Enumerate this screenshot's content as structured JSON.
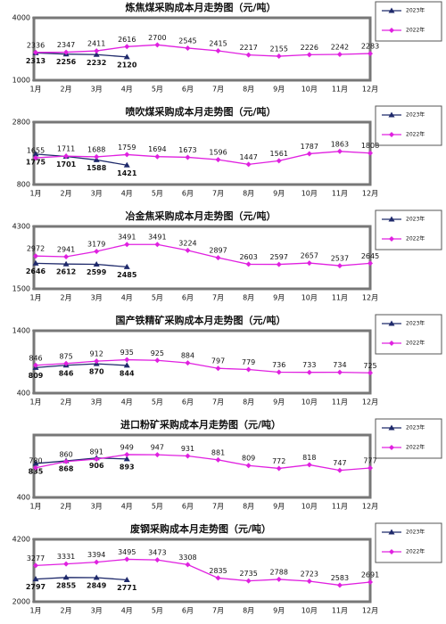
{
  "chart_data": [
    {
      "type": "line",
      "title": "炼焦煤采购成本月走势图（元/吨）",
      "categories": [
        "1月",
        "2月",
        "3月",
        "4月",
        "5月",
        "6月",
        "7月",
        "8月",
        "9月",
        "10月",
        "11月",
        "12月"
      ],
      "ylim": [
        1000,
        4000
      ],
      "yticks": [
        1000,
        4000
      ],
      "series": [
        {
          "name": "2023年",
          "color": "#1f2a6b",
          "marker": "triangle",
          "values": [
            2313,
            2256,
            2232,
            2120,
            null,
            null,
            null,
            null,
            null,
            null,
            null,
            null
          ]
        },
        {
          "name": "2022年",
          "color": "#e020e0",
          "marker": "diamond",
          "values": [
            2336,
            2347,
            2411,
            2616,
            2700,
            2545,
            2415,
            2217,
            2155,
            2226,
            2242,
            2283
          ]
        }
      ]
    },
    {
      "type": "line",
      "title": "喷吹煤采购成本月走势图（元/吨）",
      "categories": [
        "1月",
        "2月",
        "3月",
        "4月",
        "5月",
        "6月",
        "7月",
        "8月",
        "9月",
        "10月",
        "11月",
        "12月"
      ],
      "ylim": [
        800,
        2800
      ],
      "yticks": [
        800,
        2800
      ],
      "series": [
        {
          "name": "2023年",
          "color": "#1f2a6b",
          "marker": "triangle",
          "values": [
            1775,
            1701,
            1588,
            1421,
            null,
            null,
            null,
            null,
            null,
            null,
            null,
            null
          ]
        },
        {
          "name": "2022年",
          "color": "#e020e0",
          "marker": "diamond",
          "values": [
            1655,
            1711,
            1688,
            1759,
            1694,
            1673,
            1596,
            1447,
            1561,
            1787,
            1863,
            1808
          ]
        }
      ]
    },
    {
      "type": "line",
      "title": "冶金焦采购成本月走势图（元/吨）",
      "categories": [
        "1月",
        "2月",
        "3月",
        "4月",
        "5月",
        "6月",
        "7月",
        "8月",
        "9月",
        "10月",
        "11月",
        "12月"
      ],
      "ylim": [
        1500,
        4300
      ],
      "yticks": [
        1500,
        4300
      ],
      "series": [
        {
          "name": "2023年",
          "color": "#1f2a6b",
          "marker": "triangle",
          "values": [
            2646,
            2612,
            2599,
            2485,
            null,
            null,
            null,
            null,
            null,
            null,
            null,
            null
          ]
        },
        {
          "name": "2022年",
          "color": "#e020e0",
          "marker": "diamond",
          "values": [
            2972,
            2941,
            3179,
            3491,
            3491,
            3224,
            2897,
            2603,
            2597,
            2657,
            2537,
            2645
          ]
        }
      ]
    },
    {
      "type": "line",
      "title": "国产铁精矿采购成本月走势图（元/吨）",
      "categories": [
        "1月",
        "2月",
        "3月",
        "4月",
        "5月",
        "6月",
        "7月",
        "8月",
        "9月",
        "10月",
        "11月",
        "12月"
      ],
      "ylim": [
        400,
        1400
      ],
      "yticks": [
        400,
        1400
      ],
      "series": [
        {
          "name": "2023年",
          "color": "#1f2a6b",
          "marker": "triangle",
          "values": [
            809,
            846,
            870,
            844,
            null,
            null,
            null,
            null,
            null,
            null,
            null,
            null
          ]
        },
        {
          "name": "2022年",
          "color": "#e020e0",
          "marker": "diamond",
          "values": [
            846,
            875,
            912,
            935,
            925,
            884,
            797,
            779,
            736,
            733,
            734,
            725
          ]
        }
      ]
    },
    {
      "type": "line",
      "title": "进口粉矿采购成本月走势图（元/吨）",
      "categories": [
        "1月",
        "2月",
        "3月",
        "4月",
        "5月",
        "6月",
        "7月",
        "8月",
        "9月",
        "10月",
        "11月",
        "12月"
      ],
      "ylim": [
        400,
        1200
      ],
      "yticks": [
        400
      ],
      "series": [
        {
          "name": "2023年",
          "color": "#1f2a6b",
          "marker": "triangle",
          "values": [
            835,
            868,
            906,
            893,
            null,
            null,
            null,
            null,
            null,
            null,
            null,
            null
          ]
        },
        {
          "name": "2022年",
          "color": "#e020e0",
          "marker": "diamond",
          "values": [
            780,
            860,
            891,
            949,
            947,
            931,
            881,
            809,
            772,
            818,
            747,
            777
          ]
        }
      ]
    },
    {
      "type": "line",
      "title": "废钢采购成本月走势图（元/吨）",
      "categories": [
        "1月",
        "2月",
        "3月",
        "4月",
        "5月",
        "6月",
        "7月",
        "8月",
        "9月",
        "10月",
        "11月",
        "12月"
      ],
      "ylim": [
        2000,
        4200
      ],
      "yticks": [
        2000,
        4200
      ],
      "series": [
        {
          "name": "2023年",
          "color": "#1f2a6b",
          "marker": "triangle",
          "values": [
            2797,
            2855,
            2849,
            2771,
            null,
            null,
            null,
            null,
            null,
            null,
            null,
            null
          ]
        },
        {
          "name": "2022年",
          "color": "#e020e0",
          "marker": "diamond",
          "values": [
            3277,
            3331,
            3394,
            3495,
            3473,
            3308,
            2835,
            2735,
            2788,
            2723,
            2583,
            2691
          ]
        }
      ]
    }
  ]
}
